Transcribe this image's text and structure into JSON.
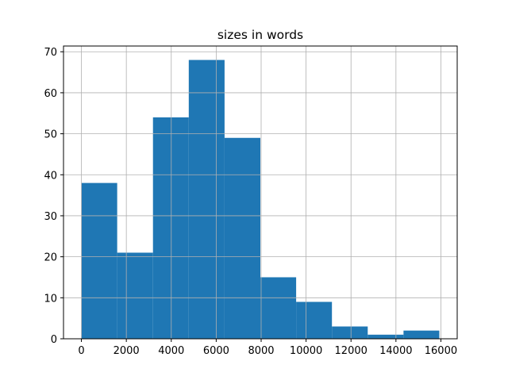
{
  "chart_data": {
    "type": "histogram",
    "title": "sizes in words",
    "bins": [
      0,
      1593,
      3186,
      4779,
      6372,
      7965,
      9558,
      11151,
      12744,
      14337,
      15930
    ],
    "values": [
      38,
      21,
      54,
      68,
      49,
      15,
      9,
      3,
      1,
      2
    ],
    "color": "#1f77b4",
    "xlim": [
      -796.5,
      16726.5
    ],
    "xticks": [
      0,
      2000,
      4000,
      6000,
      8000,
      10000,
      12000,
      14000,
      16000
    ],
    "ylim": [
      0,
      71.4
    ],
    "yticks": [
      0,
      10,
      20,
      30,
      40,
      50,
      60,
      70
    ],
    "grid": true
  }
}
